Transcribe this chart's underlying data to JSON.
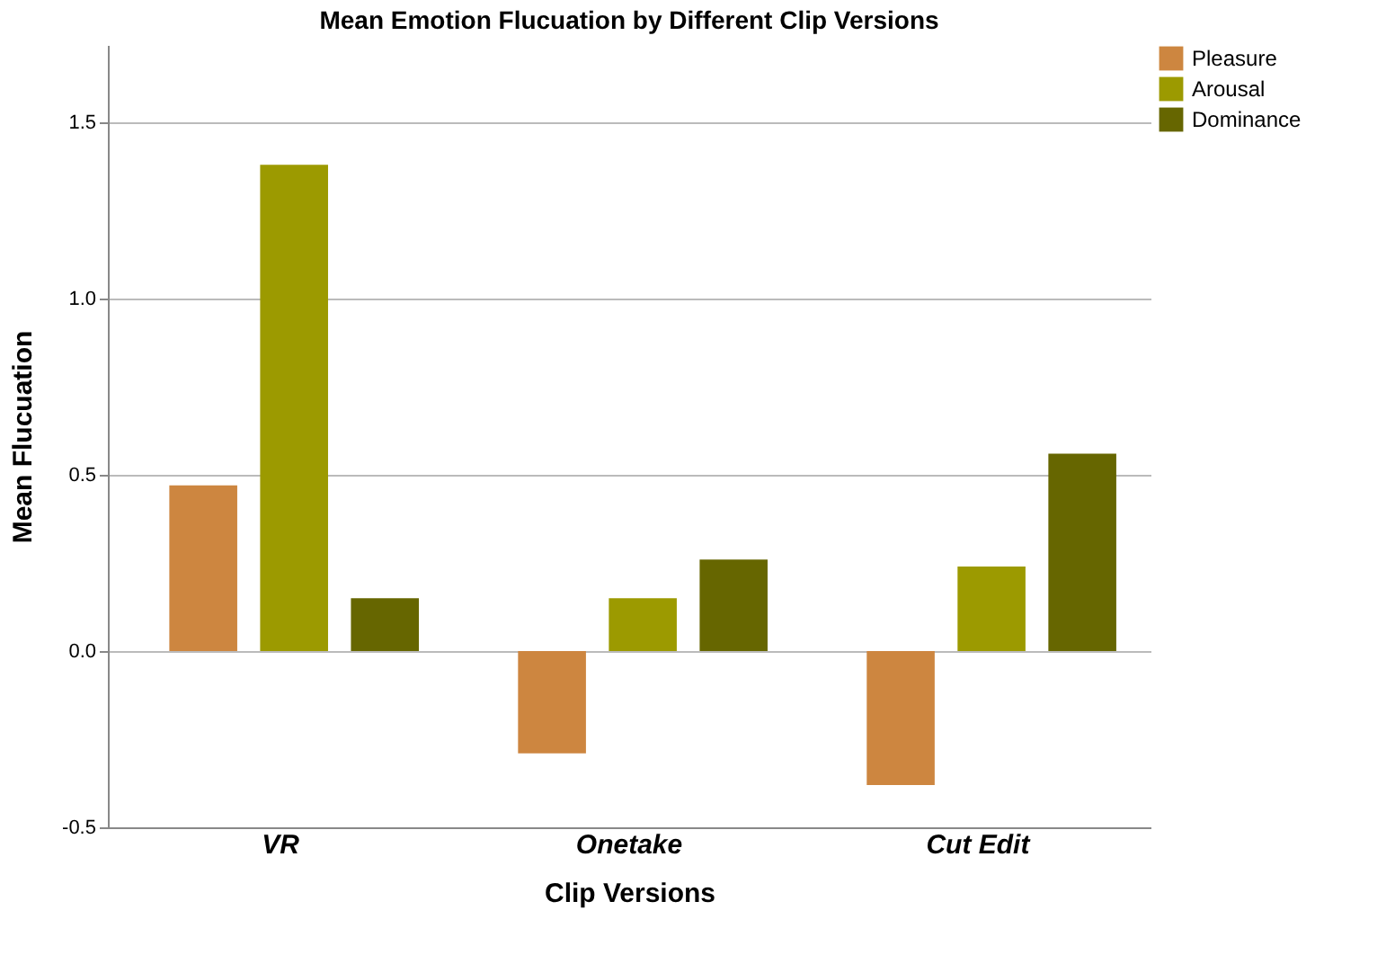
{
  "chart_data": {
    "type": "bar",
    "title": "Mean Emotion Flucuation by Different Clip Versions",
    "xlabel": "Clip Versions",
    "ylabel": "Mean Flucuation",
    "categories": [
      "VR",
      "Onetake",
      "Cut Edit"
    ],
    "series": [
      {
        "name": "Pleasure",
        "color": "#cd8640",
        "values": [
          0.47,
          -0.29,
          -0.38
        ]
      },
      {
        "name": "Arousal",
        "color": "#9c9a00",
        "values": [
          1.38,
          0.15,
          0.24
        ]
      },
      {
        "name": "Dominance",
        "color": "#666600",
        "values": [
          0.15,
          0.26,
          0.56
        ]
      }
    ],
    "ylim": [
      -0.5,
      1.72
    ],
    "yticks": [
      {
        "value": -0.5,
        "label": "-0.5"
      },
      {
        "value": 0,
        "label": "0.0"
      },
      {
        "value": 0.5,
        "label": "0.5"
      },
      {
        "value": 1,
        "label": "1.0"
      },
      {
        "value": 1.5,
        "label": "1.5"
      }
    ],
    "grid": "y",
    "legend": "top right"
  }
}
